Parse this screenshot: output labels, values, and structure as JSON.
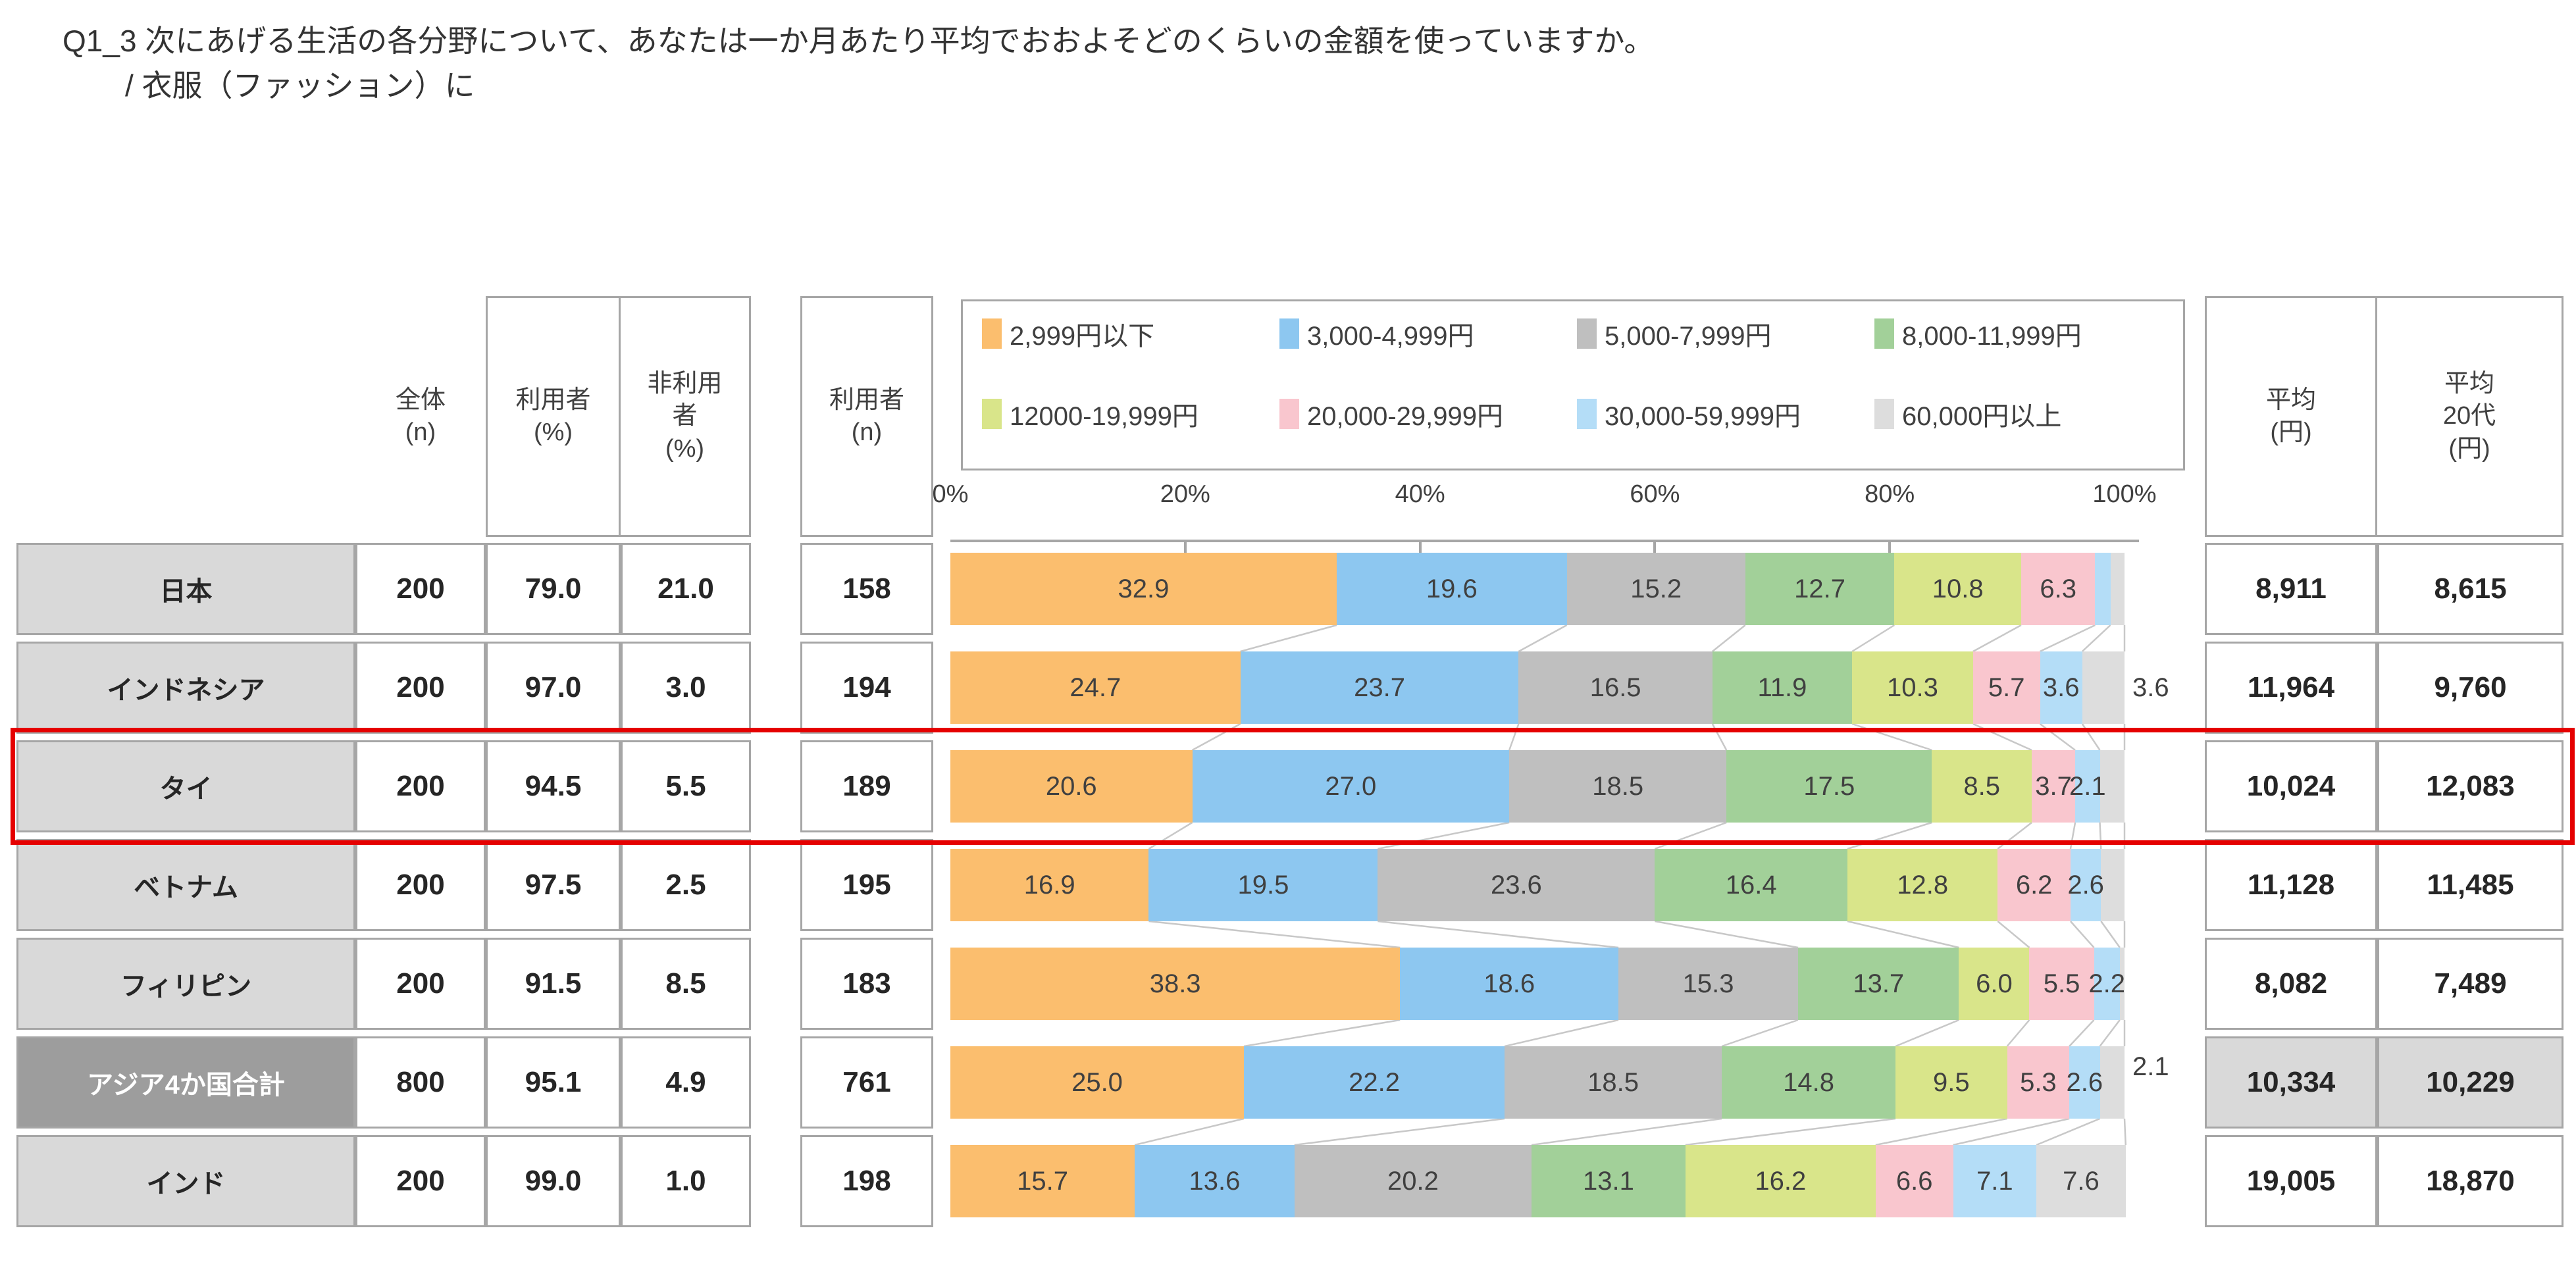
{
  "title": {
    "line1": "Q1_3 次にあげる生活の各分野について、あなたは一か月あたり平均でおおよそどのくらいの金額を使っていますか。",
    "line2": "/ 衣服（ファッション）に"
  },
  "headers": {
    "zentai_n": "全体\n(n)",
    "riyosha_pct": "利用者\n(%)",
    "hi_riyosha_pct": "非利用\n者\n(%)",
    "riyosha_n": "利用者\n(n)",
    "avg": "平均\n(円)",
    "avg_20s": "平均\n20代\n(円)"
  },
  "legend": [
    {
      "label": "2,999円以下",
      "color": "#FBBE6E"
    },
    {
      "label": "3,000-4,999円",
      "color": "#8DC7F0"
    },
    {
      "label": "5,000-7,999円",
      "color": "#BFBFBF"
    },
    {
      "label": "8,000-11,999円",
      "color": "#A2D099"
    },
    {
      "label": "12000-19,999円",
      "color": "#D9E58A"
    },
    {
      "label": "20,000-29,999円",
      "color": "#F9C6CE"
    },
    {
      "label": "30,000-59,999円",
      "color": "#B4DDF7"
    },
    {
      "label": "60,000円以上",
      "color": "#DDDDDD"
    }
  ],
  "chart_data": {
    "type": "bar",
    "stacked": true,
    "orientation": "horizontal",
    "unit": "%",
    "categories": [
      "日本",
      "インドネシア",
      "タイ",
      "ベトナム",
      "フィリピン",
      "アジア4か国合計",
      "インド"
    ],
    "series": [
      {
        "name": "2,999円以下",
        "color": "#FBBE6E",
        "values": [
          32.9,
          24.7,
          20.6,
          16.9,
          38.3,
          25.0,
          15.7
        ]
      },
      {
        "name": "3,000-4,999円",
        "color": "#8DC7F0",
        "values": [
          19.6,
          23.7,
          27.0,
          19.5,
          18.6,
          22.2,
          13.6
        ]
      },
      {
        "name": "5,000-7,999円",
        "color": "#BFBFBF",
        "values": [
          15.2,
          16.5,
          18.5,
          23.6,
          15.3,
          18.5,
          20.2
        ]
      },
      {
        "name": "8,000-11,999円",
        "color": "#A2D099",
        "values": [
          12.7,
          11.9,
          17.5,
          16.4,
          13.7,
          14.8,
          13.1
        ]
      },
      {
        "name": "12000-19,999円",
        "color": "#D9E58A",
        "values": [
          10.8,
          10.3,
          8.5,
          12.8,
          6.0,
          9.5,
          16.2
        ]
      },
      {
        "name": "20,000-29,999円",
        "color": "#F9C6CE",
        "values": [
          6.3,
          5.7,
          3.7,
          6.2,
          5.5,
          5.3,
          6.6
        ]
      },
      {
        "name": "30,000-59,999円",
        "color": "#B4DDF7",
        "values": [
          1.3,
          3.6,
          2.1,
          2.6,
          2.2,
          2.6,
          7.1
        ]
      },
      {
        "name": "60,000円以上",
        "color": "#DDDDDD",
        "values": [
          1.2,
          3.6,
          2.1,
          2.0,
          0.4,
          2.1,
          7.6
        ]
      }
    ],
    "xlim": [
      0,
      100
    ],
    "x_ticks": [
      "0%",
      "20%",
      "40%",
      "60%",
      "80%",
      "100%"
    ],
    "x_tick_values": [
      0,
      20,
      40,
      60,
      80,
      100
    ],
    "legend_position": "top",
    "grid": false
  },
  "rows": [
    {
      "country": "日本",
      "zentai_n": "200",
      "riyosha_pct": "79.0",
      "hi_riyosha_pct": "21.0",
      "riyosha_n": "158",
      "avg": "8,911",
      "avg_20s": "8,615",
      "is_total": false,
      "highlighted": false,
      "bar_labels": [
        "32.9",
        "19.6",
        "15.2",
        "12.7",
        "10.8",
        "6.3",
        "",
        ""
      ],
      "outside_label": "",
      "outside_label_raised": false
    },
    {
      "country": "インドネシア",
      "zentai_n": "200",
      "riyosha_pct": "97.0",
      "hi_riyosha_pct": "3.0",
      "riyosha_n": "194",
      "avg": "11,964",
      "avg_20s": "9,760",
      "is_total": false,
      "highlighted": false,
      "bar_labels": [
        "24.7",
        "23.7",
        "16.5",
        "11.9",
        "10.3",
        "5.7",
        "3.6",
        ""
      ],
      "outside_label": "3.6",
      "outside_label_raised": false
    },
    {
      "country": "タイ",
      "zentai_n": "200",
      "riyosha_pct": "94.5",
      "hi_riyosha_pct": "5.5",
      "riyosha_n": "189",
      "avg": "10,024",
      "avg_20s": "12,083",
      "is_total": false,
      "highlighted": true,
      "bar_labels": [
        "20.6",
        "27.0",
        "18.5",
        "17.5",
        "8.5",
        "3.7",
        "2.1",
        ""
      ],
      "outside_label": "",
      "outside_label_raised": false
    },
    {
      "country": "ベトナム",
      "zentai_n": "200",
      "riyosha_pct": "97.5",
      "hi_riyosha_pct": "2.5",
      "riyosha_n": "195",
      "avg": "11,128",
      "avg_20s": "11,485",
      "is_total": false,
      "highlighted": false,
      "bar_labels": [
        "16.9",
        "19.5",
        "23.6",
        "16.4",
        "12.8",
        "6.2",
        "2.6",
        ""
      ],
      "outside_label": "",
      "outside_label_raised": false
    },
    {
      "country": "フィリピン",
      "zentai_n": "200",
      "riyosha_pct": "91.5",
      "hi_riyosha_pct": "8.5",
      "riyosha_n": "183",
      "avg": "8,082",
      "avg_20s": "7,489",
      "is_total": false,
      "highlighted": false,
      "bar_labels": [
        "38.3",
        "18.6",
        "15.3",
        "13.7",
        "6.0",
        "5.5",
        "2.2",
        ""
      ],
      "outside_label": "",
      "outside_label_raised": false
    },
    {
      "country": "アジア4か国合計",
      "zentai_n": "800",
      "riyosha_pct": "95.1",
      "hi_riyosha_pct": "4.9",
      "riyosha_n": "761",
      "avg": "10,334",
      "avg_20s": "10,229",
      "is_total": true,
      "highlighted": false,
      "bar_labels": [
        "25.0",
        "22.2",
        "18.5",
        "14.8",
        "9.5",
        "5.3",
        "2.6",
        ""
      ],
      "outside_label": "2.1",
      "outside_label_raised": true
    },
    {
      "country": "インド",
      "zentai_n": "200",
      "riyosha_pct": "99.0",
      "hi_riyosha_pct": "1.0",
      "riyosha_n": "198",
      "avg": "19,005",
      "avg_20s": "18,870",
      "is_total": false,
      "highlighted": false,
      "bar_labels": [
        "15.7",
        "13.6",
        "20.2",
        "13.1",
        "16.2",
        "6.6",
        "7.1",
        "7.6"
      ],
      "outside_label": "",
      "outside_label_raised": false
    }
  ],
  "colors": {
    "border": "#A6A6A6",
    "row_label_bg": "#D9D9D9",
    "total_row_label_bg": "#9D9D9D",
    "highlight_red": "#E50000",
    "series_line": "#C8C8C8",
    "bar_label_text": "#404040"
  }
}
